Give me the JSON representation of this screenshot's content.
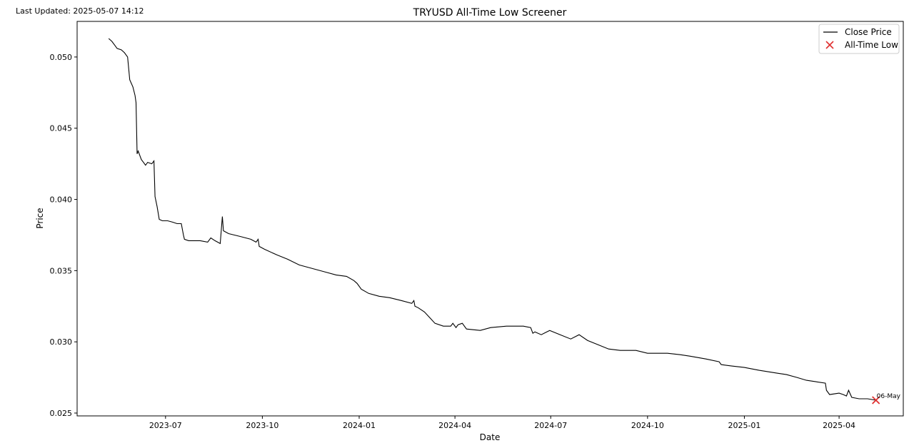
{
  "header": {
    "last_updated": "Last Updated: 2025-05-07 14:12"
  },
  "chart_data": {
    "type": "line",
    "title": "TRYUSD All-Time Low Screener",
    "xlabel": "Date",
    "ylabel": "Price",
    "xlim": [
      "2023-04-08",
      "2025-06-01"
    ],
    "ylim": [
      0.0248,
      0.0525
    ],
    "x_ticks": [
      "2023-07",
      "2023-10",
      "2024-01",
      "2024-04",
      "2024-07",
      "2024-10",
      "2025-01",
      "2025-04"
    ],
    "y_ticks": [
      "0.025",
      "0.030",
      "0.035",
      "0.040",
      "0.045",
      "0.050"
    ],
    "grid": false,
    "legend": {
      "placement": "top-right",
      "entries": [
        "Close Price",
        "All-Time Low"
      ]
    },
    "colors": {
      "line": "#000000",
      "marker": "#e03030"
    },
    "series": [
      {
        "name": "Close Price",
        "points": [
          [
            "2023-05-08",
            0.0513
          ],
          [
            "2023-05-11",
            0.0511
          ],
          [
            "2023-05-14",
            0.0508
          ],
          [
            "2023-05-16",
            0.0506
          ],
          [
            "2023-05-20",
            0.0505
          ],
          [
            "2023-05-23",
            0.0503
          ],
          [
            "2023-05-26",
            0.05
          ],
          [
            "2023-05-28",
            0.0484
          ],
          [
            "2023-05-31",
            0.0479
          ],
          [
            "2023-06-02",
            0.0473
          ],
          [
            "2023-06-03",
            0.0468
          ],
          [
            "2023-06-04",
            0.0432
          ],
          [
            "2023-06-05",
            0.0434
          ],
          [
            "2023-06-08",
            0.0428
          ],
          [
            "2023-06-10",
            0.0426
          ],
          [
            "2023-06-12",
            0.0424
          ],
          [
            "2023-06-14",
            0.0426
          ],
          [
            "2023-06-18",
            0.0425
          ],
          [
            "2023-06-20",
            0.0427
          ],
          [
            "2023-06-21",
            0.0402
          ],
          [
            "2023-06-23",
            0.0395
          ],
          [
            "2023-06-25",
            0.0386
          ],
          [
            "2023-06-28",
            0.0385
          ],
          [
            "2023-07-03",
            0.0385
          ],
          [
            "2023-07-08",
            0.0384
          ],
          [
            "2023-07-12",
            0.0383
          ],
          [
            "2023-07-16",
            0.0383
          ],
          [
            "2023-07-18",
            0.0375
          ],
          [
            "2023-07-19",
            0.0372
          ],
          [
            "2023-07-23",
            0.0371
          ],
          [
            "2023-08-03",
            0.0371
          ],
          [
            "2023-08-10",
            0.037
          ],
          [
            "2023-08-13",
            0.0373
          ],
          [
            "2023-08-17",
            0.0371
          ],
          [
            "2023-08-22",
            0.0369
          ],
          [
            "2023-08-24",
            0.0388
          ],
          [
            "2023-08-25",
            0.0378
          ],
          [
            "2023-08-30",
            0.0376
          ],
          [
            "2023-09-10",
            0.0374
          ],
          [
            "2023-09-20",
            0.0372
          ],
          [
            "2023-09-25",
            0.037
          ],
          [
            "2023-09-27",
            0.0372
          ],
          [
            "2023-09-28",
            0.0367
          ],
          [
            "2023-10-03",
            0.0365
          ],
          [
            "2023-10-15",
            0.0361
          ],
          [
            "2023-10-25",
            0.0358
          ],
          [
            "2023-11-05",
            0.0354
          ],
          [
            "2023-11-15",
            0.0352
          ],
          [
            "2023-11-30",
            0.0349
          ],
          [
            "2023-12-10",
            0.0347
          ],
          [
            "2023-12-20",
            0.0346
          ],
          [
            "2023-12-27",
            0.0343
          ],
          [
            "2023-12-30",
            0.0341
          ],
          [
            "2024-01-03",
            0.0337
          ],
          [
            "2024-01-10",
            0.0334
          ],
          [
            "2024-01-20",
            0.0332
          ],
          [
            "2024-01-30",
            0.0331
          ],
          [
            "2024-02-10",
            0.0329
          ],
          [
            "2024-02-20",
            0.0327
          ],
          [
            "2024-02-22",
            0.0329
          ],
          [
            "2024-02-23",
            0.0325
          ],
          [
            "2024-02-26",
            0.0324
          ],
          [
            "2024-03-03",
            0.0321
          ],
          [
            "2024-03-08",
            0.0317
          ],
          [
            "2024-03-13",
            0.0313
          ],
          [
            "2024-03-21",
            0.0311
          ],
          [
            "2024-03-28",
            0.0311
          ],
          [
            "2024-03-30",
            0.0313
          ],
          [
            "2024-04-02",
            0.031
          ],
          [
            "2024-04-04",
            0.0312
          ],
          [
            "2024-04-08",
            0.0313
          ],
          [
            "2024-04-12",
            0.0309
          ],
          [
            "2024-04-25",
            0.0308
          ],
          [
            "2024-05-05",
            0.031
          ],
          [
            "2024-05-20",
            0.0311
          ],
          [
            "2024-06-05",
            0.0311
          ],
          [
            "2024-06-12",
            0.031
          ],
          [
            "2024-06-14",
            0.0306
          ],
          [
            "2024-06-16",
            0.0307
          ],
          [
            "2024-06-22",
            0.0305
          ],
          [
            "2024-06-30",
            0.0308
          ],
          [
            "2024-07-10",
            0.0305
          ],
          [
            "2024-07-20",
            0.0302
          ],
          [
            "2024-07-28",
            0.0305
          ],
          [
            "2024-08-05",
            0.0301
          ],
          [
            "2024-08-15",
            0.0298
          ],
          [
            "2024-08-25",
            0.0295
          ],
          [
            "2024-09-05",
            0.0294
          ],
          [
            "2024-09-20",
            0.0294
          ],
          [
            "2024-10-01",
            0.0292
          ],
          [
            "2024-10-20",
            0.0292
          ],
          [
            "2024-11-01",
            0.0291
          ],
          [
            "2024-11-10",
            0.029
          ],
          [
            "2024-11-25",
            0.0288
          ],
          [
            "2024-12-08",
            0.0286
          ],
          [
            "2024-12-10",
            0.0284
          ],
          [
            "2024-12-20",
            0.0283
          ],
          [
            "2025-01-01",
            0.0282
          ],
          [
            "2025-01-15",
            0.028
          ],
          [
            "2025-02-01",
            0.0278
          ],
          [
            "2025-02-10",
            0.0277
          ],
          [
            "2025-02-20",
            0.0275
          ],
          [
            "2025-03-01",
            0.0273
          ],
          [
            "2025-03-10",
            0.0272
          ],
          [
            "2025-03-19",
            0.0271
          ],
          [
            "2025-03-20",
            0.0266
          ],
          [
            "2025-03-23",
            0.0263
          ],
          [
            "2025-04-01",
            0.0264
          ],
          [
            "2025-04-05",
            0.0263
          ],
          [
            "2025-04-08",
            0.0262
          ],
          [
            "2025-04-10",
            0.0266
          ],
          [
            "2025-04-13",
            0.0261
          ],
          [
            "2025-04-20",
            0.026
          ],
          [
            "2025-04-28",
            0.026
          ],
          [
            "2025-05-06",
            0.0259
          ]
        ]
      }
    ],
    "all_time_low": {
      "date": "2025-05-06",
      "value": 0.0259,
      "label": "06-May"
    }
  }
}
